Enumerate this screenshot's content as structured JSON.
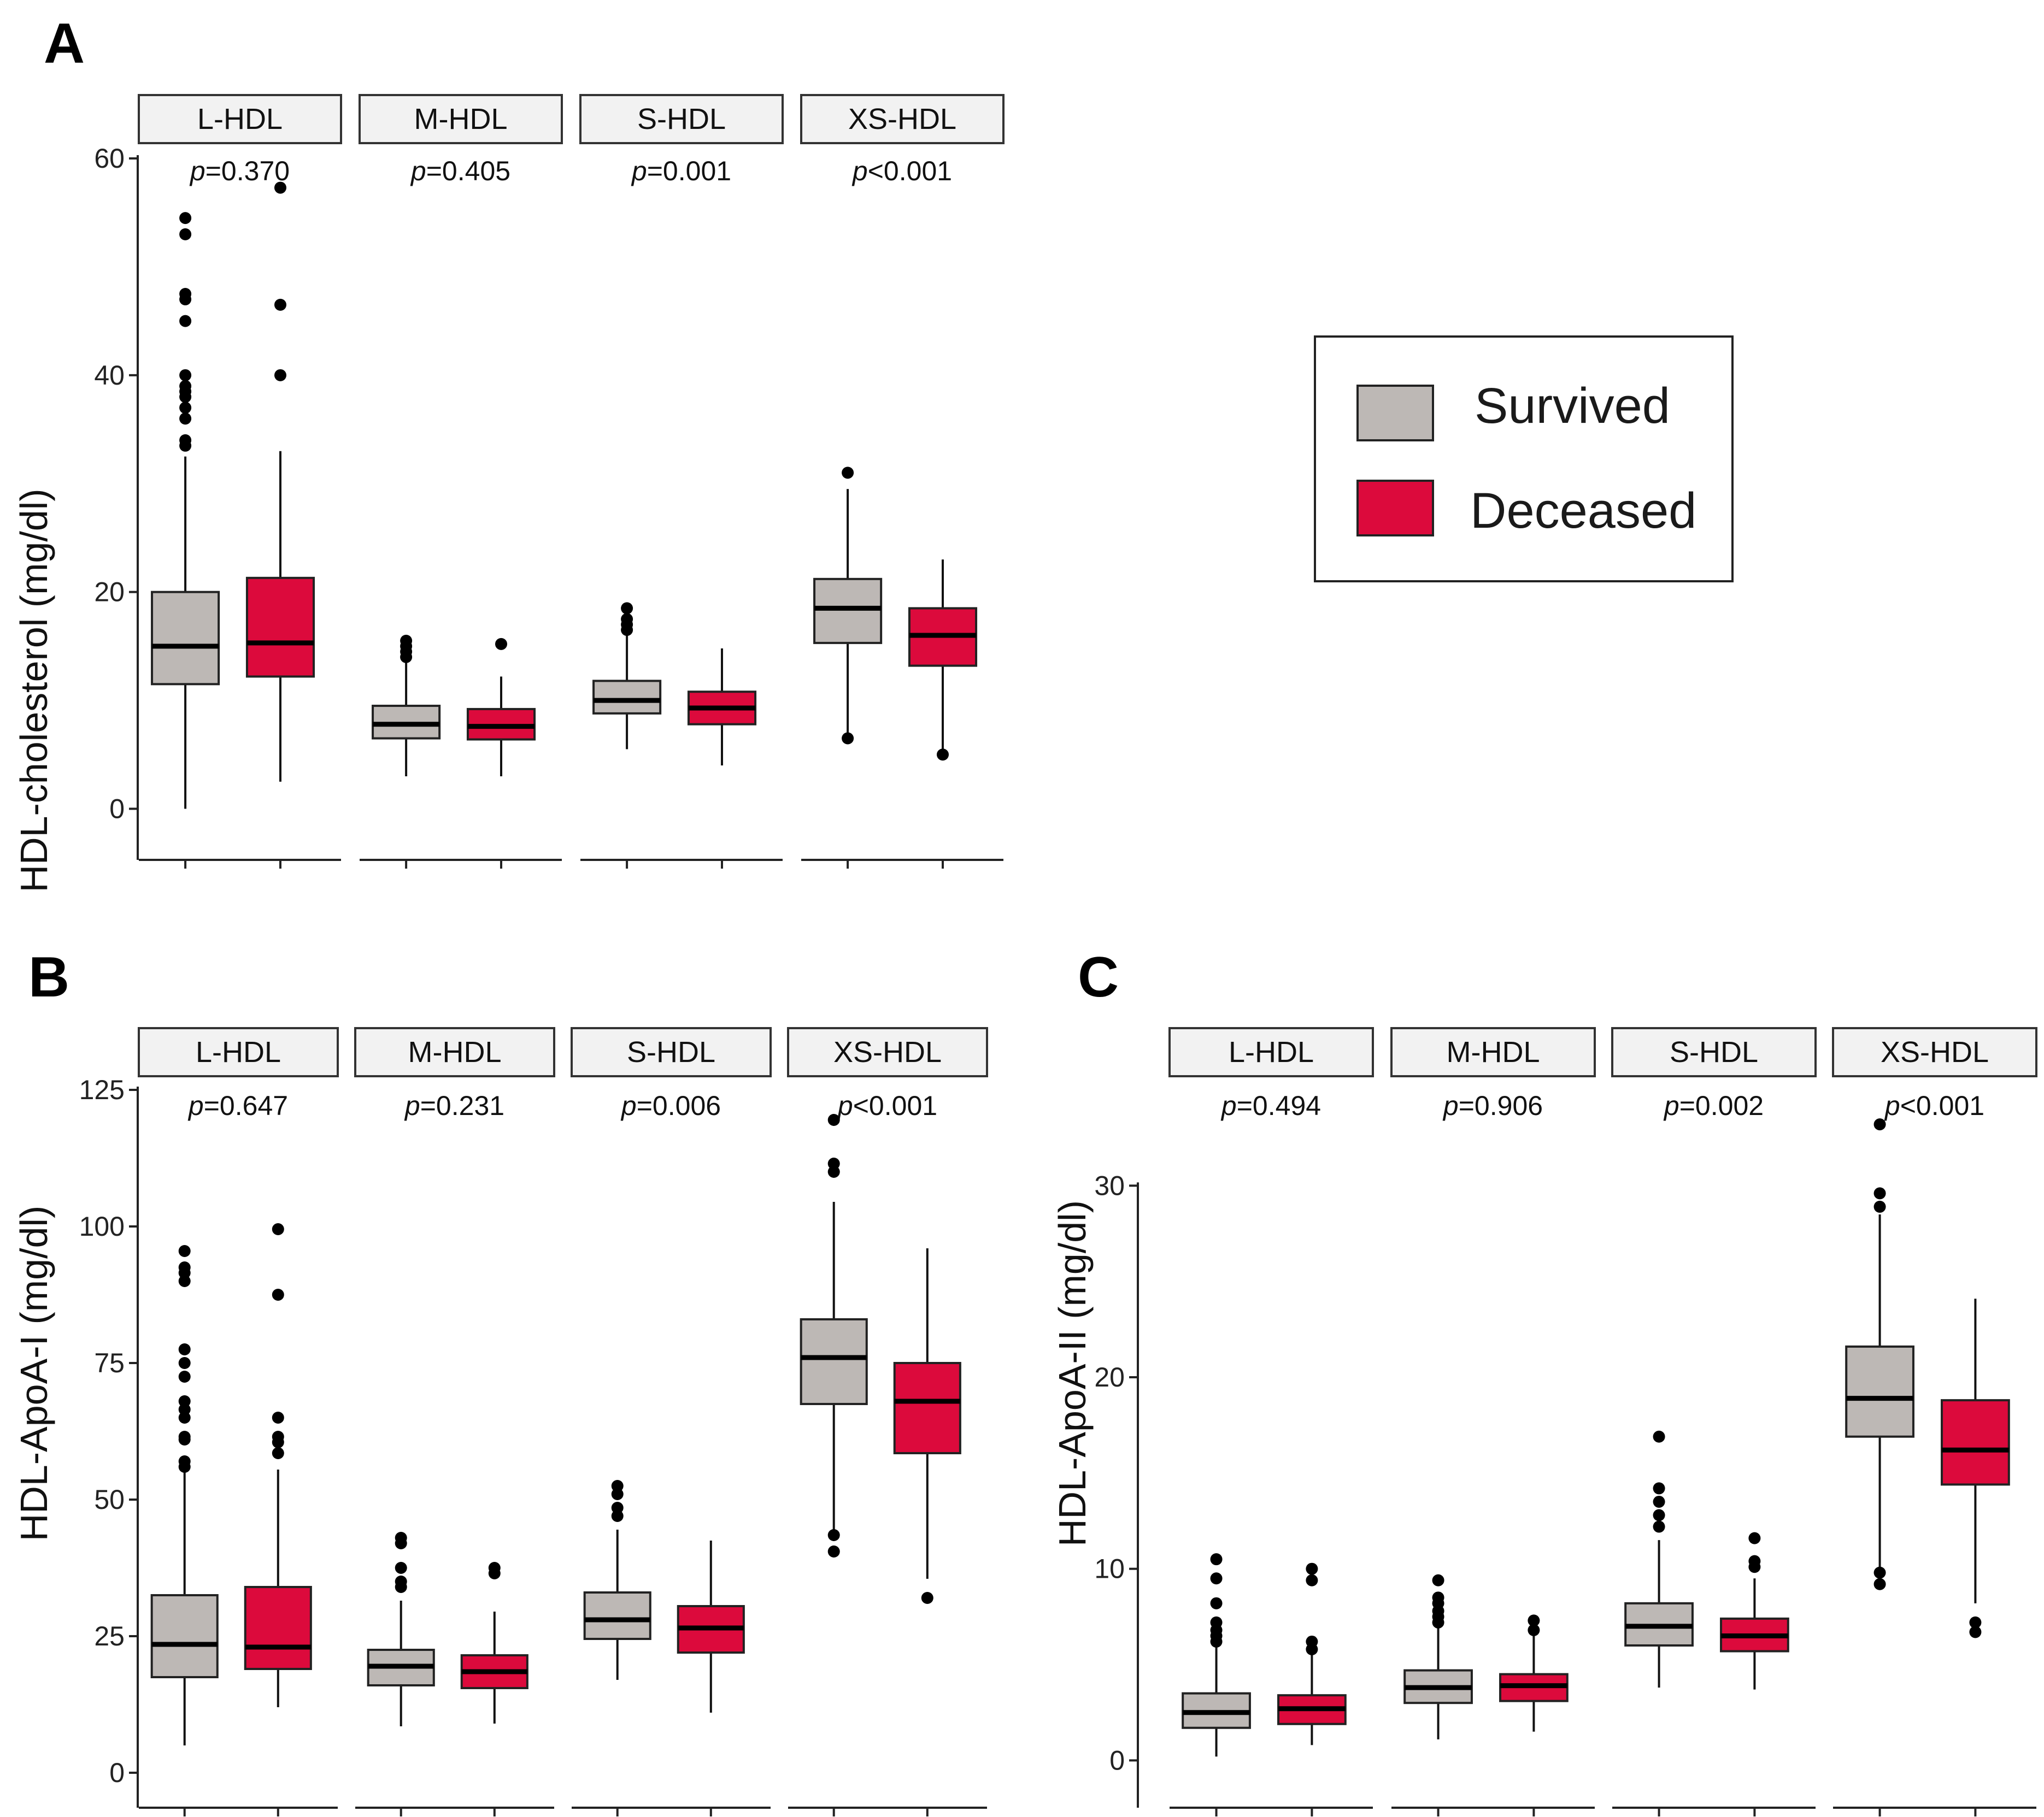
{
  "colors": {
    "survived": "#bdb8b5",
    "deceased": "#dc0a3c",
    "strip": "#f2f2f2"
  },
  "legend": {
    "items": [
      {
        "label": "Survived",
        "color": "#bdb8b5"
      },
      {
        "label": "Deceased",
        "color": "#dc0a3c"
      }
    ]
  },
  "chart_data": [
    {
      "type": "box",
      "panel_label": "A",
      "ylabel": "HDL-cholesterol (mg/dl)",
      "ylim": [
        -3,
        60
      ],
      "yticks": [
        0,
        20,
        40,
        60
      ],
      "groups": [
        "Survived",
        "Deceased"
      ],
      "facets": [
        {
          "label": "L-HDL",
          "p_prefix": "p",
          "p_value": "=0.370",
          "boxes": [
            {
              "group": "Survived",
              "min": 0,
              "q1": 11.5,
              "median": 15,
              "q3": 20,
              "max": 32.5,
              "outliers": [
                33.5,
                34,
                36,
                37,
                38,
                38.5,
                39,
                40,
                45,
                47,
                47.5,
                53,
                54.5
              ]
            },
            {
              "group": "Deceased",
              "min": 2.5,
              "q1": 12.2,
              "median": 15.3,
              "q3": 21.3,
              "max": 33,
              "outliers": [
                40,
                46.5,
                57.3
              ]
            }
          ]
        },
        {
          "label": "M-HDL",
          "p_prefix": "p",
          "p_value": "=0.405",
          "boxes": [
            {
              "group": "Survived",
              "min": 3,
              "q1": 6.5,
              "median": 7.8,
              "q3": 9.5,
              "max": 13.5,
              "outliers": [
                14,
                14.5,
                15,
                15.5
              ]
            },
            {
              "group": "Deceased",
              "min": 3,
              "q1": 6.4,
              "median": 7.6,
              "q3": 9.2,
              "max": 12.2,
              "outliers": [
                15.2
              ]
            }
          ]
        },
        {
          "label": "S-HDL",
          "p_prefix": "p",
          "p_value": "=0.001",
          "boxes": [
            {
              "group": "Survived",
              "min": 5.5,
              "q1": 8.8,
              "median": 10,
              "q3": 11.8,
              "max": 16,
              "outliers": [
                16.5,
                17,
                17.5,
                18.5
              ]
            },
            {
              "group": "Deceased",
              "min": 4,
              "q1": 7.8,
              "median": 9.3,
              "q3": 10.8,
              "max": 14.8,
              "outliers": []
            }
          ]
        },
        {
          "label": "XS-HDL",
          "p_prefix": "p",
          "p_value": "<0.001",
          "boxes": [
            {
              "group": "Survived",
              "min": 6.5,
              "q1": 15.3,
              "median": 18.5,
              "q3": 21.2,
              "max": 29.5,
              "outliers": [
                31,
                6.5
              ]
            },
            {
              "group": "Deceased",
              "min": 5,
              "q1": 13.2,
              "median": 16,
              "q3": 18.5,
              "max": 23,
              "outliers": [
                5
              ]
            }
          ]
        }
      ]
    },
    {
      "type": "box",
      "panel_label": "B",
      "ylabel": "HDL-ApoA-I (mg/dl)",
      "ylim": [
        -3,
        125
      ],
      "yticks": [
        0,
        25,
        50,
        75,
        100,
        125
      ],
      "groups": [
        "Survived",
        "Deceased"
      ],
      "facets": [
        {
          "label": "L-HDL",
          "p_prefix": "p",
          "p_value": "=0.647",
          "boxes": [
            {
              "group": "Survived",
              "min": 5,
              "q1": 17.5,
              "median": 23.5,
              "q3": 32.5,
              "max": 55,
              "outliers": [
                56,
                57,
                61,
                61.5,
                65,
                66.5,
                68,
                72.5,
                75,
                77.5,
                90,
                91.5,
                92.5,
                95.5
              ]
            },
            {
              "group": "Deceased",
              "min": 12,
              "q1": 19,
              "median": 23,
              "q3": 34,
              "max": 55.5,
              "outliers": [
                58.5,
                60.5,
                61.5,
                65,
                87.5,
                99.5
              ]
            }
          ]
        },
        {
          "label": "M-HDL",
          "p_prefix": "p",
          "p_value": "=0.231",
          "boxes": [
            {
              "group": "Survived",
              "min": 8.5,
              "q1": 16,
              "median": 19.5,
              "q3": 22.5,
              "max": 31.5,
              "outliers": [
                34,
                35,
                37.5,
                42,
                43
              ]
            },
            {
              "group": "Deceased",
              "min": 9,
              "q1": 15.5,
              "median": 18.5,
              "q3": 21.5,
              "max": 29.5,
              "outliers": [
                36.5,
                37.5
              ]
            }
          ]
        },
        {
          "label": "S-HDL",
          "p_prefix": "p",
          "p_value": "=0.006",
          "boxes": [
            {
              "group": "Survived",
              "min": 17,
              "q1": 24.5,
              "median": 28,
              "q3": 33,
              "max": 44.5,
              "outliers": [
                47,
                48.5,
                51,
                52.5
              ]
            },
            {
              "group": "Deceased",
              "min": 11,
              "q1": 22,
              "median": 26.5,
              "q3": 30.5,
              "max": 42.5,
              "outliers": []
            }
          ]
        },
        {
          "label": "XS-HDL",
          "p_prefix": "p",
          "p_value": "<0.001",
          "boxes": [
            {
              "group": "Survived",
              "min": 43.5,
              "q1": 67.5,
              "median": 76,
              "q3": 83,
              "max": 104.5,
              "outliers": [
                40.5,
                43.5,
                110,
                111.5,
                119.5
              ]
            },
            {
              "group": "Deceased",
              "min": 35.5,
              "q1": 58.5,
              "median": 68,
              "q3": 75,
              "max": 96,
              "outliers": [
                32
              ]
            }
          ]
        }
      ]
    },
    {
      "type": "box",
      "panel_label": "C",
      "ylabel": "HDL-ApoA-II (mg/dl)",
      "ylim": [
        -1.5,
        35
      ],
      "yticks": [
        0,
        10,
        20,
        30
      ],
      "groups": [
        "Survived",
        "Deceased"
      ],
      "facets": [
        {
          "label": "L-HDL",
          "p_prefix": "p",
          "p_value": "=0.494",
          "boxes": [
            {
              "group": "Survived",
              "min": 0.2,
              "q1": 1.7,
              "median": 2.5,
              "q3": 3.5,
              "max": 6,
              "outliers": [
                6.2,
                6.5,
                6.8,
                7.2,
                8.2,
                9.5,
                10.5
              ]
            },
            {
              "group": "Deceased",
              "min": 0.8,
              "q1": 1.9,
              "median": 2.7,
              "q3": 3.4,
              "max": 5.5,
              "outliers": [
                5.8,
                6.2,
                9.4,
                10
              ]
            }
          ]
        },
        {
          "label": "M-HDL",
          "p_prefix": "p",
          "p_value": "=0.906",
          "boxes": [
            {
              "group": "Survived",
              "min": 1.1,
              "q1": 3,
              "median": 3.8,
              "q3": 4.7,
              "max": 7,
              "outliers": [
                7.2,
                7.5,
                7.8,
                8.2,
                8.5,
                9.4
              ]
            },
            {
              "group": "Deceased",
              "min": 1.5,
              "q1": 3.1,
              "median": 3.9,
              "q3": 4.5,
              "max": 6.5,
              "outliers": [
                6.8,
                7.3
              ]
            }
          ]
        },
        {
          "label": "S-HDL",
          "p_prefix": "p",
          "p_value": "=0.002",
          "boxes": [
            {
              "group": "Survived",
              "min": 3.8,
              "q1": 6,
              "median": 7,
              "q3": 8.2,
              "max": 11.5,
              "outliers": [
                12.2,
                12.8,
                13.5,
                14.2,
                16.9
              ]
            },
            {
              "group": "Deceased",
              "min": 3.7,
              "q1": 5.7,
              "median": 6.5,
              "q3": 7.4,
              "max": 9.5,
              "outliers": [
                10.1,
                10.4,
                11.6
              ]
            }
          ]
        },
        {
          "label": "XS-HDL",
          "p_prefix": "p",
          "p_value": "<0.001",
          "boxes": [
            {
              "group": "Survived",
              "min": 9.8,
              "q1": 16.9,
              "median": 18.9,
              "q3": 21.6,
              "max": 28.5,
              "outliers": [
                9.2,
                9.8,
                28.9,
                29.6,
                33.2
              ]
            },
            {
              "group": "Deceased",
              "min": 8.2,
              "q1": 14.4,
              "median": 16.2,
              "q3": 18.8,
              "max": 24.1,
              "outliers": [
                6.7,
                7.2
              ]
            }
          ]
        }
      ]
    }
  ]
}
